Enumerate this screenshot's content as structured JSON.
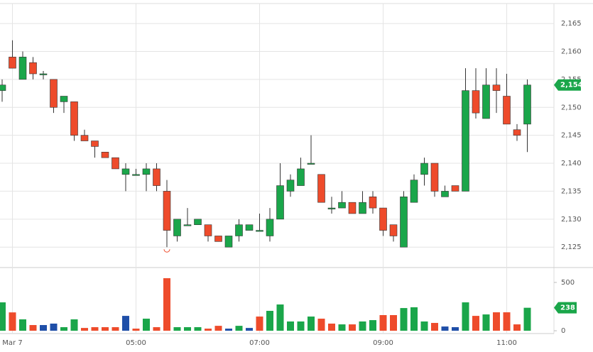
{
  "chart_data": [
    {
      "type": "candlestick",
      "categories": [
        null,
        "Mar 7",
        null,
        null,
        null,
        null,
        null,
        null,
        null,
        null,
        null,
        null,
        null,
        "05:00",
        null,
        null,
        null,
        null,
        null,
        null,
        null,
        null,
        null,
        null,
        null,
        "07:00",
        null,
        null,
        null,
        null,
        null,
        null,
        null,
        null,
        null,
        null,
        null,
        "09:00",
        null,
        null,
        null,
        null,
        null,
        null,
        null,
        null,
        null,
        null,
        null,
        "11:00",
        null,
        null
      ],
      "open": [
        2153,
        2159,
        2155,
        2158,
        2156,
        2155,
        2151,
        2151,
        2145,
        2144,
        2142,
        2141,
        2138,
        2138,
        2138,
        2139,
        2135,
        2127,
        2129,
        2129,
        2129,
        2127,
        2125,
        2127,
        2128,
        2128,
        2127,
        2130,
        2135,
        2136,
        2140,
        2138,
        2132,
        2132,
        2133,
        2131,
        2134,
        2132,
        2129,
        2125,
        2133,
        2138,
        2140,
        2134,
        2136,
        2135,
        2153,
        2148,
        2154,
        2152,
        2146,
        2147
      ],
      "high": [
        2155,
        2162,
        2160,
        2159,
        2156.5,
        2155,
        2152,
        2151,
        2146,
        2144,
        2142,
        2141,
        2140,
        2139,
        2140,
        2140,
        2137,
        2130,
        2132,
        2130,
        2129,
        2127,
        2127,
        2130,
        2129,
        2131,
        2132,
        2140,
        2138,
        2141,
        2145,
        2138,
        2134,
        2135,
        2133,
        2135,
        2135,
        2132,
        2129,
        2135,
        2138,
        2141,
        2140,
        2136,
        2136,
        2157,
        2157,
        2157,
        2157,
        2156,
        2147,
        2155
      ],
      "low": [
        2151,
        2157,
        2155,
        2155,
        2155,
        2149,
        2149,
        2144,
        2144,
        2141,
        2141,
        2139,
        2135,
        2138,
        2135,
        2135,
        2125,
        2126,
        2129,
        2129,
        2126,
        2126,
        2125,
        2126,
        2128,
        2128,
        2126,
        2130,
        2134,
        2136,
        2140,
        2133,
        2131,
        2132,
        2131,
        2131,
        2131,
        2127,
        2126,
        2125,
        2133,
        2136,
        2134,
        2134,
        2135,
        2135,
        2148,
        2148,
        2149,
        2147,
        2144,
        2142
      ],
      "close": [
        2154,
        2157,
        2159,
        2156,
        2156,
        2150,
        2152,
        2145,
        2144,
        2143,
        2141,
        2139,
        2139,
        2138,
        2139,
        2136,
        2128,
        2130,
        2129,
        2130,
        2127,
        2126,
        2127,
        2129,
        2129,
        2128,
        2130,
        2136,
        2137,
        2139,
        2140,
        2133,
        2132,
        2133,
        2131,
        2133,
        2132,
        2128,
        2127,
        2134,
        2137,
        2140,
        2135,
        2135,
        2135,
        2153,
        2149,
        2154,
        2153,
        2147,
        2145,
        2154
      ],
      "last_label": "2,154",
      "up_color": "#1aa64a",
      "down_color": "#ee4b2b",
      "ylim": [
        2121.6,
        2169.2
      ],
      "yticks": [
        {
          "value": 2125,
          "label": "2,125"
        },
        {
          "value": 2130,
          "label": "2,130"
        },
        {
          "value": 2135,
          "label": "2,135"
        },
        {
          "value": 2140,
          "label": "2,140"
        },
        {
          "value": 2145,
          "label": "2,145"
        },
        {
          "value": 2150,
          "label": "2,150"
        },
        {
          "value": 2155,
          "label": "2,155"
        },
        {
          "value": 2160,
          "label": "2,160"
        },
        {
          "value": 2165,
          "label": "2,165"
        }
      ],
      "grid": true
    },
    {
      "type": "bar",
      "values": [
        294,
        190,
        118,
        59,
        59,
        74,
        37,
        118,
        29,
        37,
        37,
        37,
        154,
        22,
        125,
        37,
        544,
        37,
        37,
        37,
        22,
        51,
        22,
        51,
        29,
        147,
        206,
        272,
        96,
        96,
        147,
        125,
        74,
        66,
        66,
        96,
        110,
        162,
        162,
        235,
        243,
        96,
        81,
        44,
        37,
        294,
        154,
        169,
        191,
        191,
        66,
        238
      ],
      "colors": [
        "#1aa64a",
        "#ee4b2b",
        "#1aa64a",
        "#ee4b2b",
        "#1f4fa8",
        "#1f4fa8",
        "#1aa64a",
        "#1aa64a",
        "#ee4b2b",
        "#ee4b2b",
        "#ee4b2b",
        "#ee4b2b",
        "#1f4fa8",
        "#ee4b2b",
        "#1aa64a",
        "#ee4b2b",
        "#ee4b2b",
        "#1aa64a",
        "#1aa64a",
        "#1aa64a",
        "#ee4b2b",
        "#ee4b2b",
        "#1f4fa8",
        "#1aa64a",
        "#1f4fa8",
        "#ee4b2b",
        "#1aa64a",
        "#1aa64a",
        "#1aa64a",
        "#1aa64a",
        "#1aa64a",
        "#ee4b2b",
        "#ee4b2b",
        "#1aa64a",
        "#ee4b2b",
        "#1aa64a",
        "#1aa64a",
        "#ee4b2b",
        "#ee4b2b",
        "#1aa64a",
        "#1aa64a",
        "#1aa64a",
        "#ee4b2b",
        "#1f4fa8",
        "#1f4fa8",
        "#1aa64a",
        "#ee4b2b",
        "#1aa64a",
        "#ee4b2b",
        "#ee4b2b",
        "#ee4b2b",
        "#1aa64a"
      ],
      "ylim": [
        -29,
        647
      ],
      "yticks": [
        0,
        500
      ],
      "grid": false
    }
  ]
}
